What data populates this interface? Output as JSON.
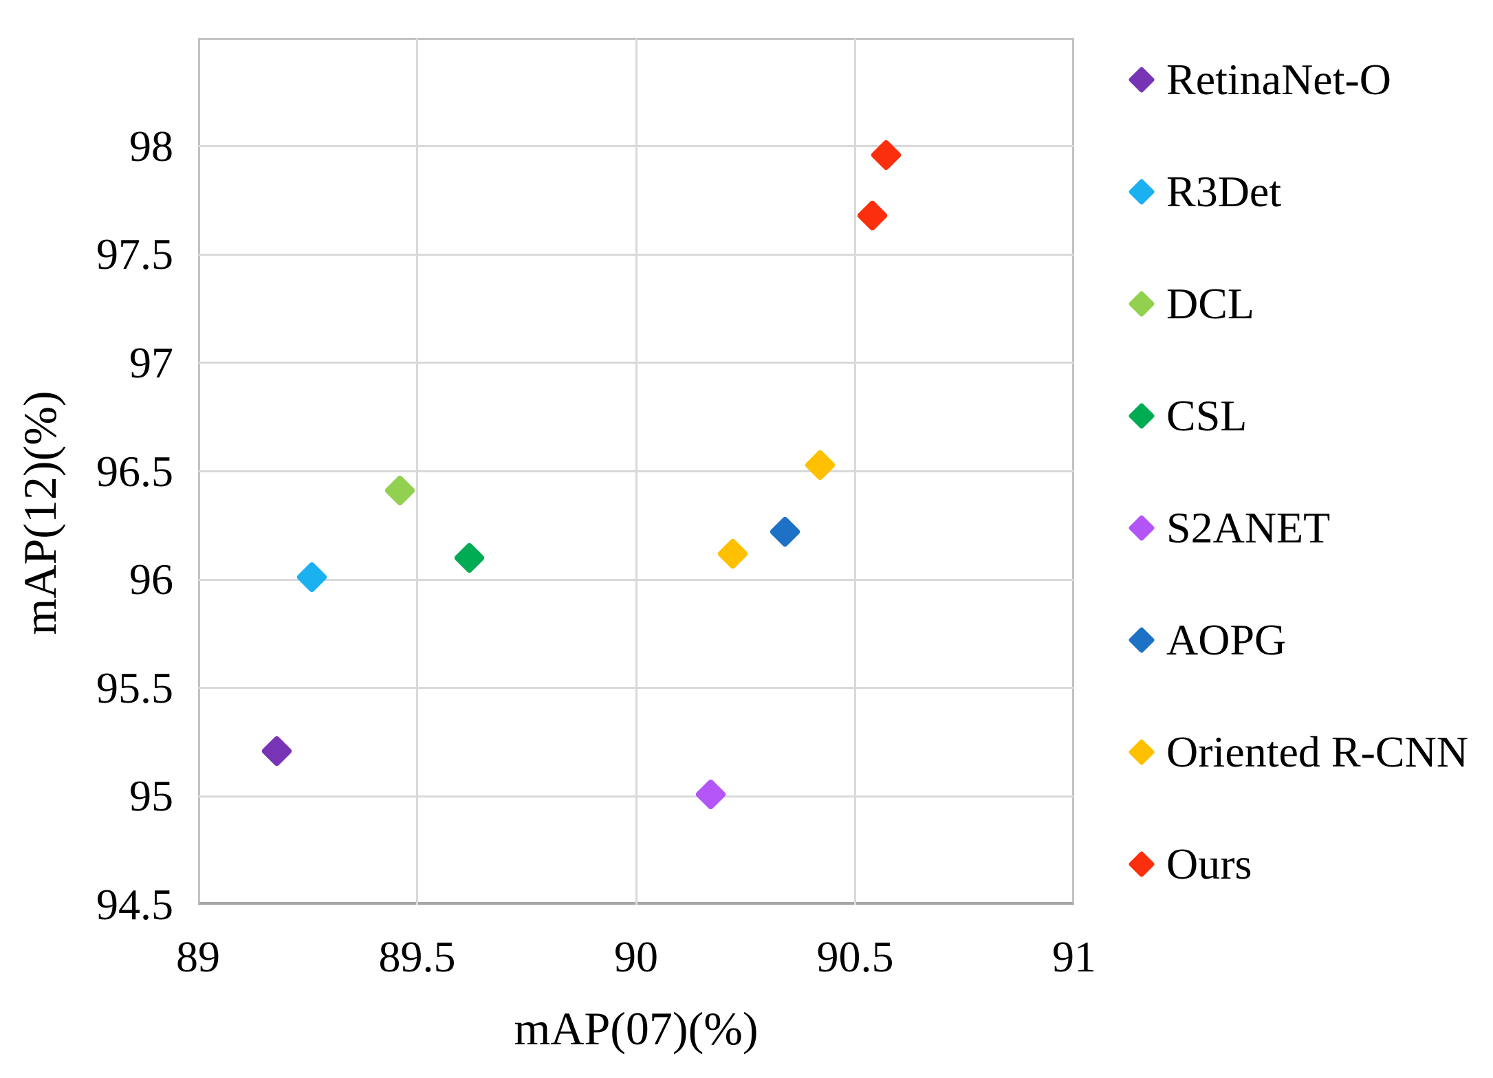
{
  "chart_data": {
    "type": "scatter",
    "title": "",
    "xlabel": "mAP(07)(%)",
    "ylabel": "mAP(12)(%)",
    "xlim": [
      89,
      91
    ],
    "ylim": [
      94.5,
      98.5
    ],
    "x_ticks": [
      89,
      89.5,
      90,
      90.5,
      91
    ],
    "x_tick_labels": [
      "89",
      "89.5",
      "90",
      "90.5",
      "91"
    ],
    "y_ticks": [
      94.5,
      95,
      95.5,
      96,
      96.5,
      97,
      97.5,
      98
    ],
    "y_tick_labels": [
      "94.5",
      "95",
      "95.5",
      "96",
      "96.5",
      "97",
      "97.5",
      "98"
    ],
    "grid": true,
    "legend_position": "right",
    "marker_shape": "diamond",
    "grid_color": "#d9d9d9",
    "axis_color": "#a6a6a6",
    "series": [
      {
        "name": "RetinaNet-O",
        "color": "#7735b5",
        "points": [
          [
            89.18,
            95.21
          ]
        ]
      },
      {
        "name": "R3Det",
        "color": "#1bb1f1",
        "points": [
          [
            89.26,
            96.01
          ]
        ]
      },
      {
        "name": "DCL",
        "color": "#92d050",
        "points": [
          [
            89.46,
            96.41
          ]
        ]
      },
      {
        "name": "CSL",
        "color": "#00ac53",
        "points": [
          [
            89.62,
            96.1
          ]
        ]
      },
      {
        "name": "S2ANET",
        "color": "#b355f7",
        "points": [
          [
            90.17,
            95.01
          ]
        ]
      },
      {
        "name": "AOPG",
        "color": "#1d72c6",
        "points": [
          [
            90.34,
            96.22
          ]
        ]
      },
      {
        "name": "Oriented R-CNN",
        "color": "#ffc000",
        "points": [
          [
            90.22,
            96.12
          ],
          [
            90.42,
            96.53
          ]
        ]
      },
      {
        "name": "Ours",
        "color": "#fb2f0e",
        "points": [
          [
            90.54,
            97.68
          ],
          [
            90.57,
            97.96
          ]
        ]
      }
    ]
  }
}
